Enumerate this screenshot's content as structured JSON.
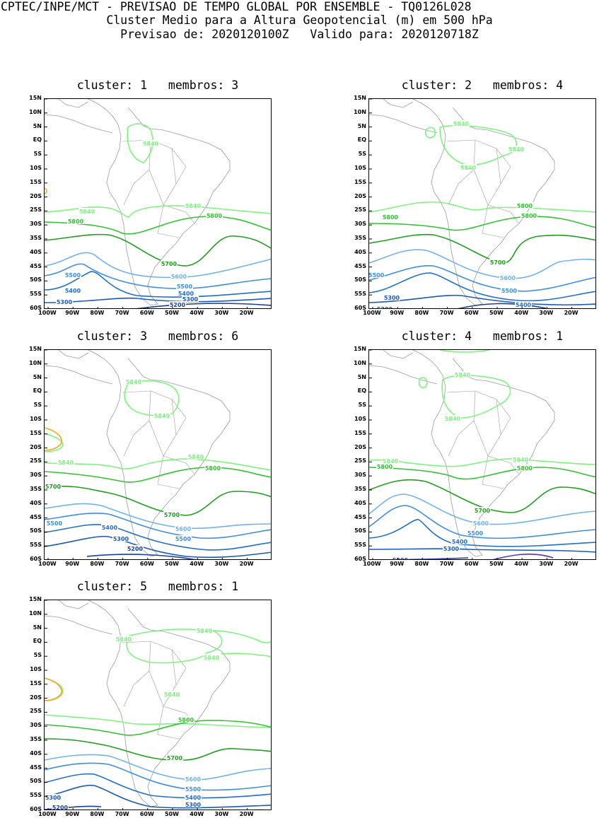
{
  "header": {
    "line1": "CPTEC/INPE/MCT - PREVISAO DE TEMPO GLOBAL POR ENSEMBLE - TQ0126L028",
    "line2": "Cluster Medio para a Altura Geopotencial (m) em 500 hPa",
    "line3": "Previsao de: 2020120100Z   Valido para: 2020120718Z"
  },
  "lat_ticks": [
    "15N",
    "10N",
    "5N",
    "EQ",
    "5S",
    "10S",
    "15S",
    "20S",
    "25S",
    "30S",
    "35S",
    "40S",
    "45S",
    "50S",
    "55S",
    "60S"
  ],
  "lon_ticks": [
    "100W",
    "90W",
    "80W",
    "70W",
    "60W",
    "50W",
    "40W",
    "30W",
    "20W"
  ],
  "colors": {
    "c5840": "#7cf57c",
    "c5800": "#2fc42f",
    "c5700": "#1ea01e",
    "c5600": "#6fb2ef",
    "c5500": "#3c8ee0",
    "c5400": "#1e6fcf",
    "c5300": "#1a5ab8",
    "c5200": "#163fa0",
    "c5100": "#5a2fb0",
    "orange": "#f5a623",
    "coast": "#9a9a9a"
  },
  "panels": [
    {
      "title": "cluster: 1   membros: 3",
      "labels": [
        "5840",
        "5840",
        "5840",
        "5800",
        "5800",
        "5700",
        "5600",
        "5500",
        "5500",
        "5400",
        "5400",
        "5300",
        "5300",
        "5200"
      ]
    },
    {
      "title": "cluster: 2   membros: 4",
      "labels": [
        "5840",
        "5840",
        "5840",
        "5800",
        "5800",
        "5700",
        "5600",
        "5500",
        "5500",
        "5400",
        "5300",
        "5300",
        "5800"
      ]
    },
    {
      "title": "cluster: 3   membros: 6",
      "labels": [
        "5840",
        "5840",
        "5840",
        "5840",
        "5800",
        "5700",
        "5700",
        "5600",
        "5500",
        "5500",
        "5400",
        "5300",
        "5200"
      ]
    },
    {
      "title": "cluster: 4   membros: 1",
      "labels": [
        "5840",
        "5840",
        "5840",
        "5840",
        "5800",
        "5800",
        "5700",
        "5600",
        "5500",
        "5400",
        "5300",
        "5200"
      ]
    },
    {
      "title": "cluster: 5   membros: 1",
      "labels": [
        "5840",
        "5840",
        "5840",
        "5840",
        "5800",
        "5700",
        "5600",
        "5500",
        "5400",
        "5300",
        "5300",
        "5200"
      ]
    }
  ]
}
